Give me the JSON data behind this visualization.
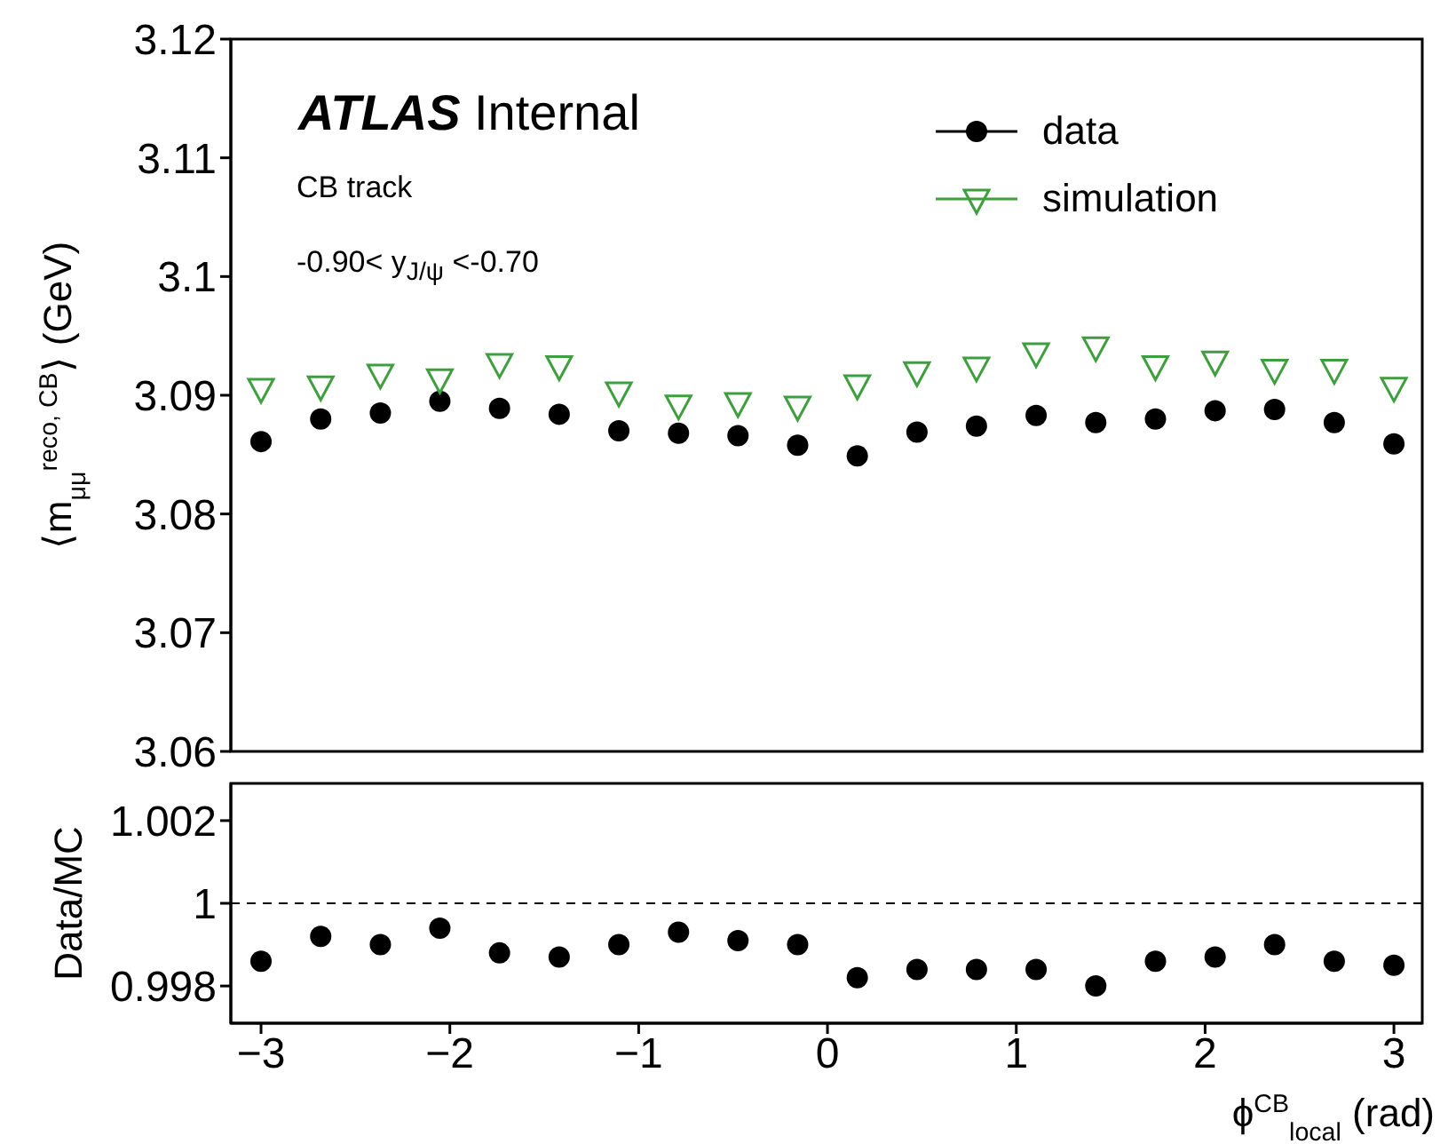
{
  "chart_data": [
    {
      "type": "scatter",
      "ylabel": "⟨m$_{μμ}$$^{reco, CB}$⟩ (GeV)",
      "annotations": [
        "ATLAS Internal",
        "CB track",
        "-0.90< y$_{J/ψ}$ <-0.70"
      ],
      "x": [
        -3,
        -2.684,
        -2.368,
        -2.053,
        -1.737,
        -1.421,
        -1.105,
        -0.789,
        -0.474,
        -0.158,
        0.158,
        0.474,
        0.789,
        1.105,
        1.421,
        1.737,
        2.053,
        2.368,
        2.684,
        3
      ],
      "series": [
        {
          "name": "data",
          "color": "#000000",
          "marker": "circle",
          "values": [
            3.0861,
            3.088,
            3.0885,
            3.0895,
            3.0889,
            3.0884,
            3.087,
            3.0868,
            3.0866,
            3.0858,
            3.0849,
            3.0869,
            3.0874,
            3.0883,
            3.0877,
            3.088,
            3.0887,
            3.0888,
            3.0877,
            3.0859
          ]
        },
        {
          "name": "simulation",
          "color": "#3f9f3f",
          "marker": "triangle",
          "values": [
            3.0906,
            3.0908,
            3.0918,
            3.0914,
            3.0927,
            3.0925,
            3.0903,
            3.0892,
            3.0894,
            3.0891,
            3.0909,
            3.092,
            3.0924,
            3.0936,
            3.0941,
            3.0925,
            3.0929,
            3.0922,
            3.0922,
            3.0907
          ]
        }
      ],
      "xlim": [
        -3.16,
        3.15
      ],
      "ylim": [
        3.06,
        3.12
      ],
      "yticks": [
        3.06,
        3.07,
        3.08,
        3.09,
        3.1,
        3.11,
        3.12
      ],
      "tick_labels": "y",
      "legend": "top right"
    },
    {
      "type": "scatter",
      "ylabel": "Data/MC",
      "xlabel": "ϕ$^{CB}$$_{local}$ (rad)",
      "x": [
        -3,
        -2.684,
        -2.368,
        -2.053,
        -1.737,
        -1.421,
        -1.105,
        -0.789,
        -0.474,
        -0.158,
        0.158,
        0.474,
        0.789,
        1.105,
        1.421,
        1.737,
        2.053,
        2.368,
        2.684,
        3
      ],
      "series": [
        {
          "color": "#000000",
          "marker": "circle",
          "values": [
            0.9986,
            0.9992,
            0.999,
            0.9994,
            0.9988,
            0.9987,
            0.999,
            0.9993,
            0.9991,
            0.999,
            0.9982,
            0.9984,
            0.9984,
            0.9984,
            0.998,
            0.9986,
            0.9987,
            0.999,
            0.9986,
            0.9985
          ]
        }
      ],
      "xlim": [
        -3.16,
        3.15
      ],
      "xticks": [
        {
          "value": -3,
          "label": "−3"
        },
        {
          "value": -2,
          "label": "−2"
        },
        {
          "value": -1,
          "label": "−1"
        },
        0,
        1,
        2,
        3
      ],
      "ylim": [
        0.9971,
        1.0029
      ],
      "yticks": [
        0.998,
        1,
        1.002
      ],
      "ref_lines": [
        {
          "axis": "y",
          "value": 1,
          "line_style": "dashed",
          "color": "#000000"
        }
      ]
    }
  ]
}
